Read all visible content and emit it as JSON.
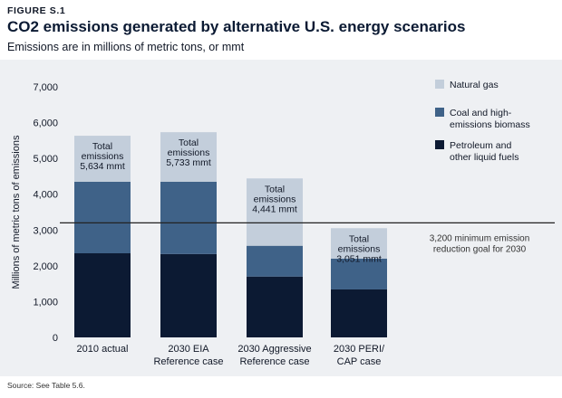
{
  "figure_label": "FIGURE S.1",
  "title": "CO2 emissions generated by alternative U.S. energy scenarios",
  "subtitle": "Emissions are in millions of metric tons, or mmt",
  "source": "Source: See Table 5.6.",
  "colors": {
    "natural_gas": "#c3cedb",
    "coal": "#3f6288",
    "petroleum": "#0c1a33",
    "goal_line": "#222222"
  },
  "chart_data": {
    "type": "bar",
    "stacked": true,
    "categories": [
      [
        "2010 actual"
      ],
      [
        "2030 EIA",
        "Reference case"
      ],
      [
        "2030 Aggressive",
        "Reference case"
      ],
      [
        "2030 PERI/",
        "CAP case"
      ]
    ],
    "series": [
      {
        "name": "Petroleum and other liquid fuels",
        "legend_lines": [
          "Petroleum and",
          "other liquid fuels"
        ],
        "color": "#0c1a33",
        "values": [
          2350,
          2330,
          1700,
          1340
        ]
      },
      {
        "name": "Coal and high-emissions biomass",
        "legend_lines": [
          "Coal and high-",
          "emissions biomass"
        ],
        "color": "#3f6288",
        "values": [
          2000,
          2020,
          860,
          860
        ]
      },
      {
        "name": "Natural gas",
        "legend_lines": [
          "Natural gas"
        ],
        "color": "#c3cedb",
        "values": [
          1284,
          1383,
          1881,
          851
        ]
      }
    ],
    "totals": [
      5634,
      5733,
      4441,
      3051
    ],
    "total_labels": [
      [
        "Total",
        "emissions",
        "5,634 mmt"
      ],
      [
        "Total",
        "emissions",
        "5,733 mmt"
      ],
      [
        "Total",
        "emissions",
        "4,441 mmt"
      ],
      [
        "Total",
        "emissions",
        "3,051 mmt"
      ]
    ],
    "ylabel": "Millions of metric tons of emissions",
    "ylim": [
      0,
      7000
    ],
    "yticks": [
      0,
      1000,
      2000,
      3000,
      4000,
      5000,
      6000,
      7000
    ],
    "ytick_labels": [
      "0",
      "1,000",
      "2,000",
      "3,000",
      "4,000",
      "5,000",
      "6,000",
      "7,000"
    ],
    "grid": false,
    "legend_position": "right",
    "reference_line": {
      "value": 3200,
      "label_lines": [
        "3,200 minimum emission",
        "reduction goal for 2030"
      ]
    }
  }
}
